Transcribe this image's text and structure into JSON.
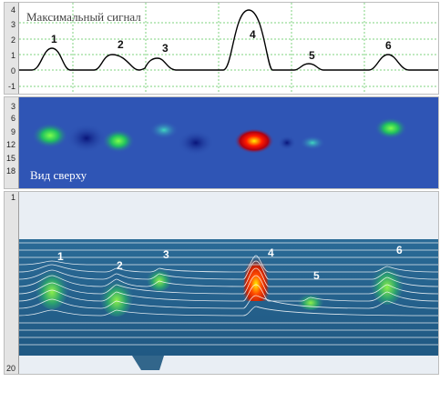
{
  "signal_panel": {
    "title": "Максимальный сигнал",
    "y_ticks": [
      "4",
      "3",
      "2",
      "1",
      "0",
      "-1"
    ],
    "peaks": [
      "1",
      "2",
      "3",
      "4",
      "5",
      "6"
    ]
  },
  "top_view_panel": {
    "title": "Вид сверху",
    "y_ticks": [
      "3",
      "6",
      "9",
      "12",
      "15",
      "18"
    ]
  },
  "volume_panel": {
    "y_ticks": [
      "1",
      "20"
    ],
    "peaks": [
      "1",
      "2",
      "3",
      "4",
      "5",
      "6"
    ]
  },
  "colors": {
    "curve": "#000000",
    "grid": "#7fd37f",
    "heat_low": "#2f55b5",
    "heat_high": "#ff1a00"
  }
}
